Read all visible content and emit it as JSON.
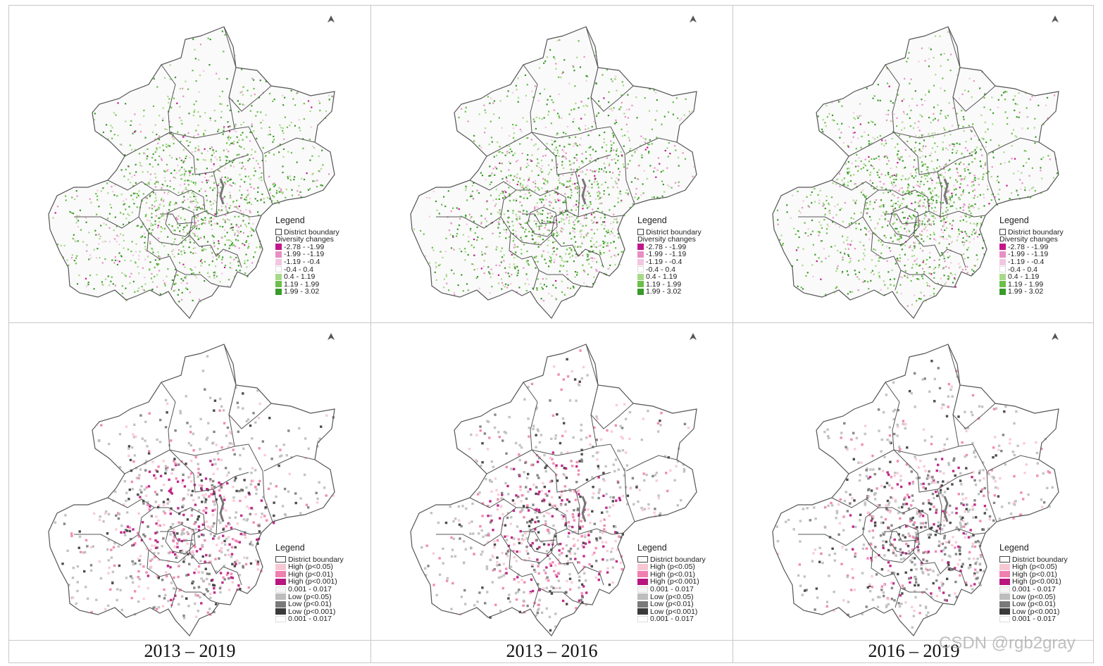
{
  "columns": [
    {
      "caption": "2013 – 2019"
    },
    {
      "caption": "2013 – 2016"
    },
    {
      "caption": "2016 – 2019"
    }
  ],
  "top_legend": {
    "title": "Legend",
    "boundary_label": "District boundary",
    "subtitle": "Diversity changes",
    "classes": [
      {
        "label": "-2.78 - -1.99",
        "color": "#c2178c"
      },
      {
        "label": "-1.99 - -1.19",
        "color": "#e88fc4"
      },
      {
        "label": "-1.19 - -0.4",
        "color": "#f2c6e0"
      },
      {
        "label": "-0.4 - 0.4",
        "color": "#ffffff"
      },
      {
        "label": "0.4 - 1.19",
        "color": "#a8d98a"
      },
      {
        "label": "1.19 - 1.99",
        "color": "#6cbf4a"
      },
      {
        "label": "1.99 - 3.02",
        "color": "#3a9a2a"
      }
    ]
  },
  "bottom_legend": {
    "title": "Legend",
    "boundary_label": "District boundary",
    "classes": [
      {
        "label": "High (p<0.05)",
        "color": "#f7c7d4"
      },
      {
        "label": "High (p<0.01)",
        "color": "#ef7fae"
      },
      {
        "label": "High (p<0.001)",
        "color": "#b8157f"
      },
      {
        "label": "0.001 - 0.017",
        "color": "#f4f4f4"
      },
      {
        "label": "Low (p<0.05)",
        "color": "#bdbdbd"
      },
      {
        "label": "Low (p<0.01)",
        "color": "#7a7a7a"
      },
      {
        "label": "Low (p<0.001)",
        "color": "#3a3a3a"
      },
      {
        "label": "0.001 - 0.017",
        "color": "#ffffff"
      }
    ]
  },
  "watermark": "CSDN @rgb2gray"
}
